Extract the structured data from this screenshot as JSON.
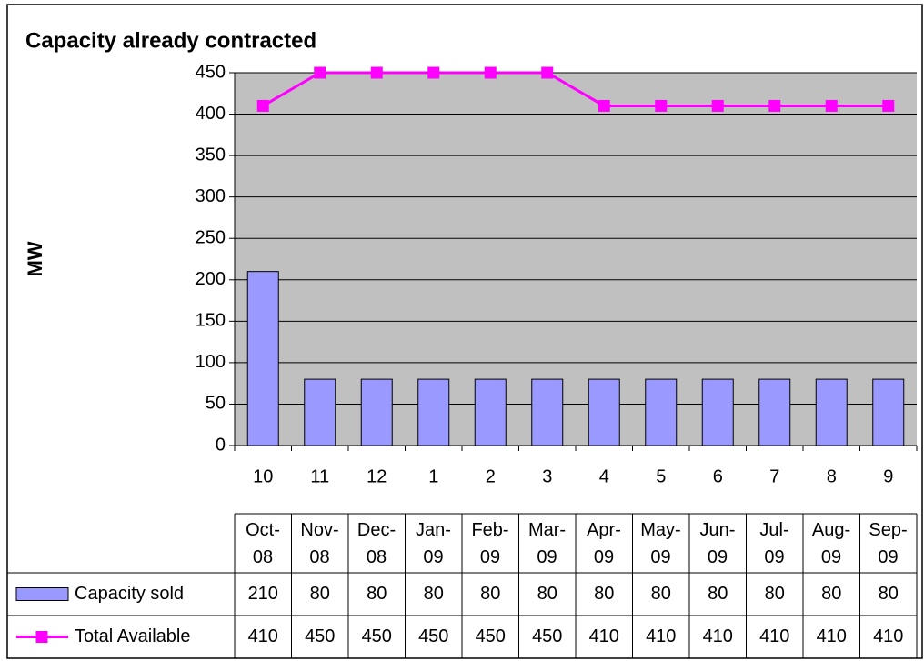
{
  "chart_data": {
    "type": "bar_line_table",
    "title": "Capacity already contracted",
    "y_label": "MW",
    "categories": [
      "10",
      "11",
      "12",
      "1",
      "2",
      "3",
      "4",
      "5",
      "6",
      "7",
      "8",
      "9"
    ],
    "table_header": [
      "Oct-\n08",
      "Nov-\n08",
      "Dec-\n08",
      "Jan-\n09",
      "Feb-\n09",
      "Mar-\n09",
      "Apr-\n09",
      "May-\n09",
      "Jun-\n09",
      "Jul-\n09",
      "Aug-\n09",
      "Sep-\n09"
    ],
    "series": [
      {
        "name": "Capacity sold",
        "type": "bar",
        "color": "#9999ff",
        "values": [
          210,
          80,
          80,
          80,
          80,
          80,
          80,
          80,
          80,
          80,
          80,
          80
        ]
      },
      {
        "name": "Total Available",
        "type": "line",
        "color": "#ff00ff",
        "values": [
          410,
          450,
          450,
          450,
          450,
          450,
          410,
          410,
          410,
          410,
          410,
          410
        ]
      }
    ],
    "ylim": [
      0,
      450
    ],
    "yticks": [
      0,
      50,
      100,
      150,
      200,
      250,
      300,
      350,
      400,
      450
    ],
    "grid": true,
    "plot_background": "#c0c0c0"
  }
}
